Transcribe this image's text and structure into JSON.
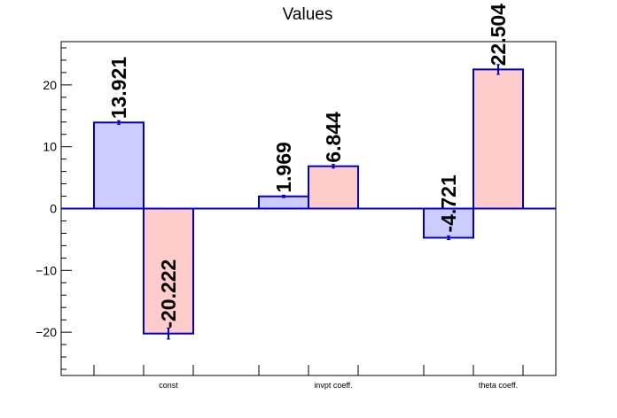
{
  "chart_data": {
    "type": "bar",
    "title": "Values",
    "xlabel": "",
    "ylabel": "",
    "categories": [
      "const",
      "invpt coeff.",
      "theta coeff."
    ],
    "series": [
      {
        "values": [
          13.921,
          1.969,
          -4.721
        ],
        "errors": [
          0.3,
          0.2,
          0.3
        ],
        "color": "#ccccff"
      },
      {
        "values": [
          -20.222,
          6.844,
          22.504
        ],
        "errors": [
          0.9,
          0.3,
          0.8
        ],
        "color": "#ffcccc"
      }
    ],
    "data_labels": [
      [
        "13.921",
        "1.969",
        "-4.721"
      ],
      [
        "-20.222",
        "6.844",
        "22.504"
      ]
    ],
    "ylim": [
      -27,
      27
    ],
    "yticks": [
      -20,
      -10,
      0,
      10,
      20
    ],
    "grid": false,
    "colors": {
      "border": "#0000cc",
      "frame": "#000000"
    }
  }
}
